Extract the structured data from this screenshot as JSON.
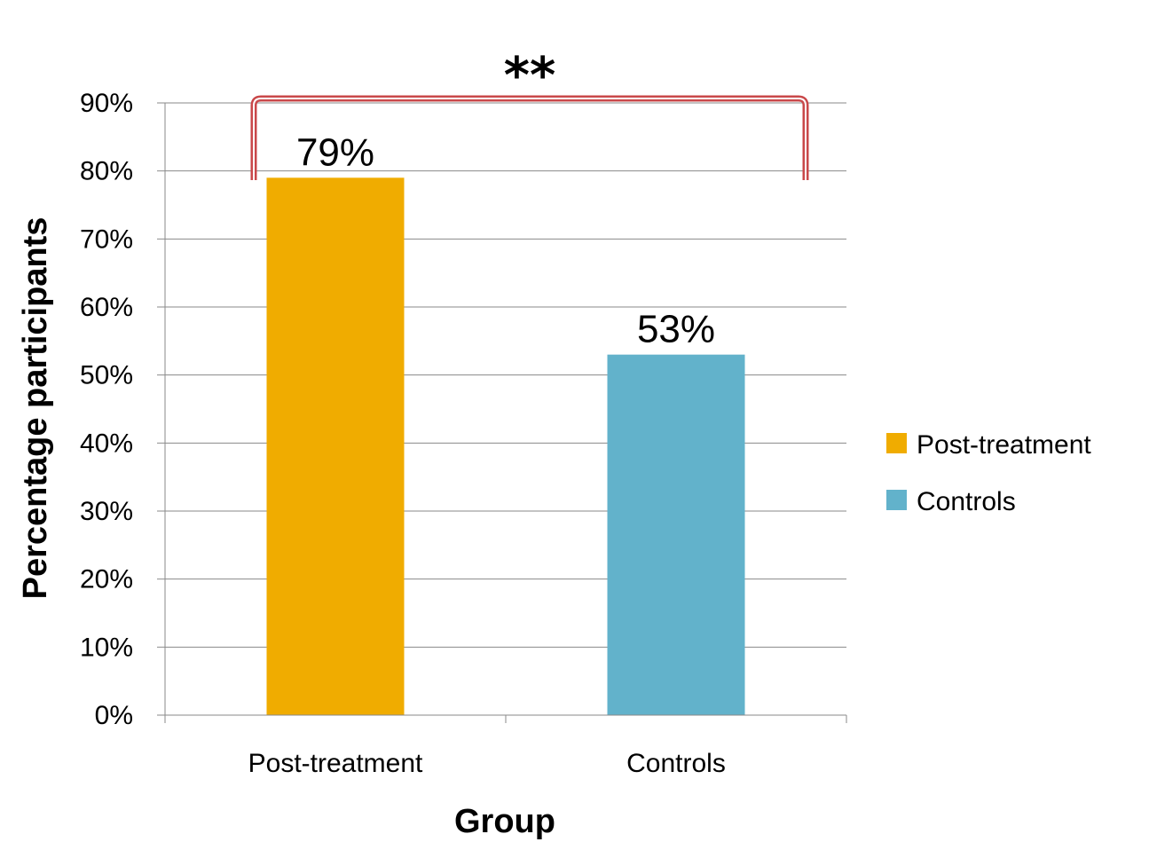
{
  "chart_data": {
    "type": "bar",
    "categories": [
      "Post-treatment",
      "Controls"
    ],
    "values": [
      79,
      53
    ],
    "data_labels": [
      "79%",
      "53%"
    ],
    "title": "",
    "xlabel": "Group",
    "ylabel": "Percentage participants",
    "ylim": [
      0,
      90
    ],
    "ytick_values": [
      0,
      10,
      20,
      30,
      40,
      50,
      60,
      70,
      80,
      90
    ],
    "ytick_labels": [
      "0%",
      "10%",
      "20%",
      "30%",
      "40%",
      "50%",
      "60%",
      "70%",
      "80%",
      "90%"
    ],
    "grid": true,
    "legend_position": "right",
    "legend": [
      {
        "label": "Post-treatment",
        "color": "#F0AC00"
      },
      {
        "label": "Controls",
        "color": "#62B2CB"
      }
    ],
    "bar_colors": [
      "#F0AC00",
      "#62B2CB"
    ],
    "annotation": {
      "text": "**",
      "color": "#C9484A",
      "between": [
        "Post-treatment",
        "Controls"
      ]
    }
  }
}
